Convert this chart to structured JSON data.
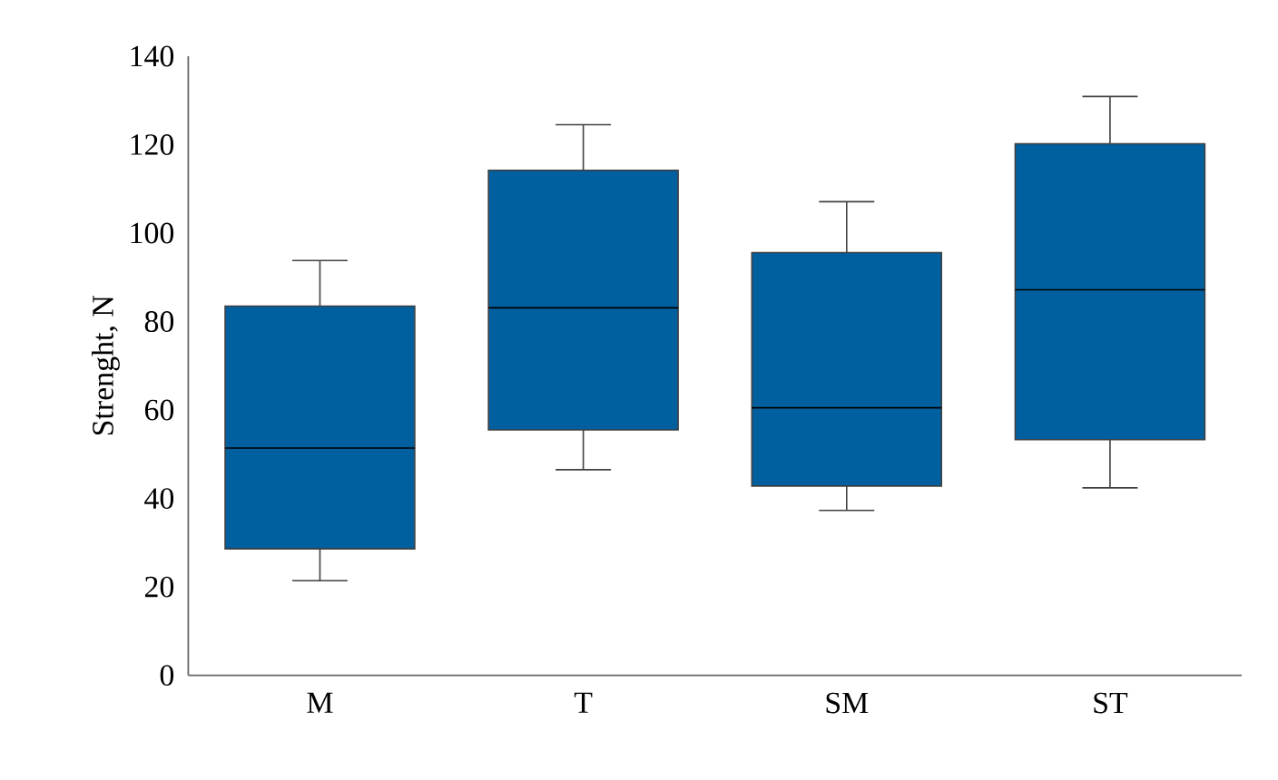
{
  "chart_data": {
    "type": "box",
    "ylabel": "Strenght, N",
    "categories": [
      "M",
      "T",
      "SM",
      "ST"
    ],
    "color": "#005f9e",
    "boxes": [
      {
        "low": 21.4,
        "q1": 28.6,
        "median": 51.4,
        "q3": 83.5,
        "high": 93.8
      },
      {
        "low": 46.5,
        "q1": 55.5,
        "median": 83.1,
        "q3": 114.2,
        "high": 124.5
      },
      {
        "low": 37.3,
        "q1": 42.8,
        "median": 60.5,
        "q3": 95.6,
        "high": 107.1
      },
      {
        "low": 42.4,
        "q1": 53.3,
        "median": 87.2,
        "q3": 120.2,
        "high": 130.9
      }
    ],
    "ylim": [
      0,
      140
    ],
    "yticks": [
      0,
      20,
      40,
      60,
      80,
      100,
      120,
      140
    ]
  }
}
